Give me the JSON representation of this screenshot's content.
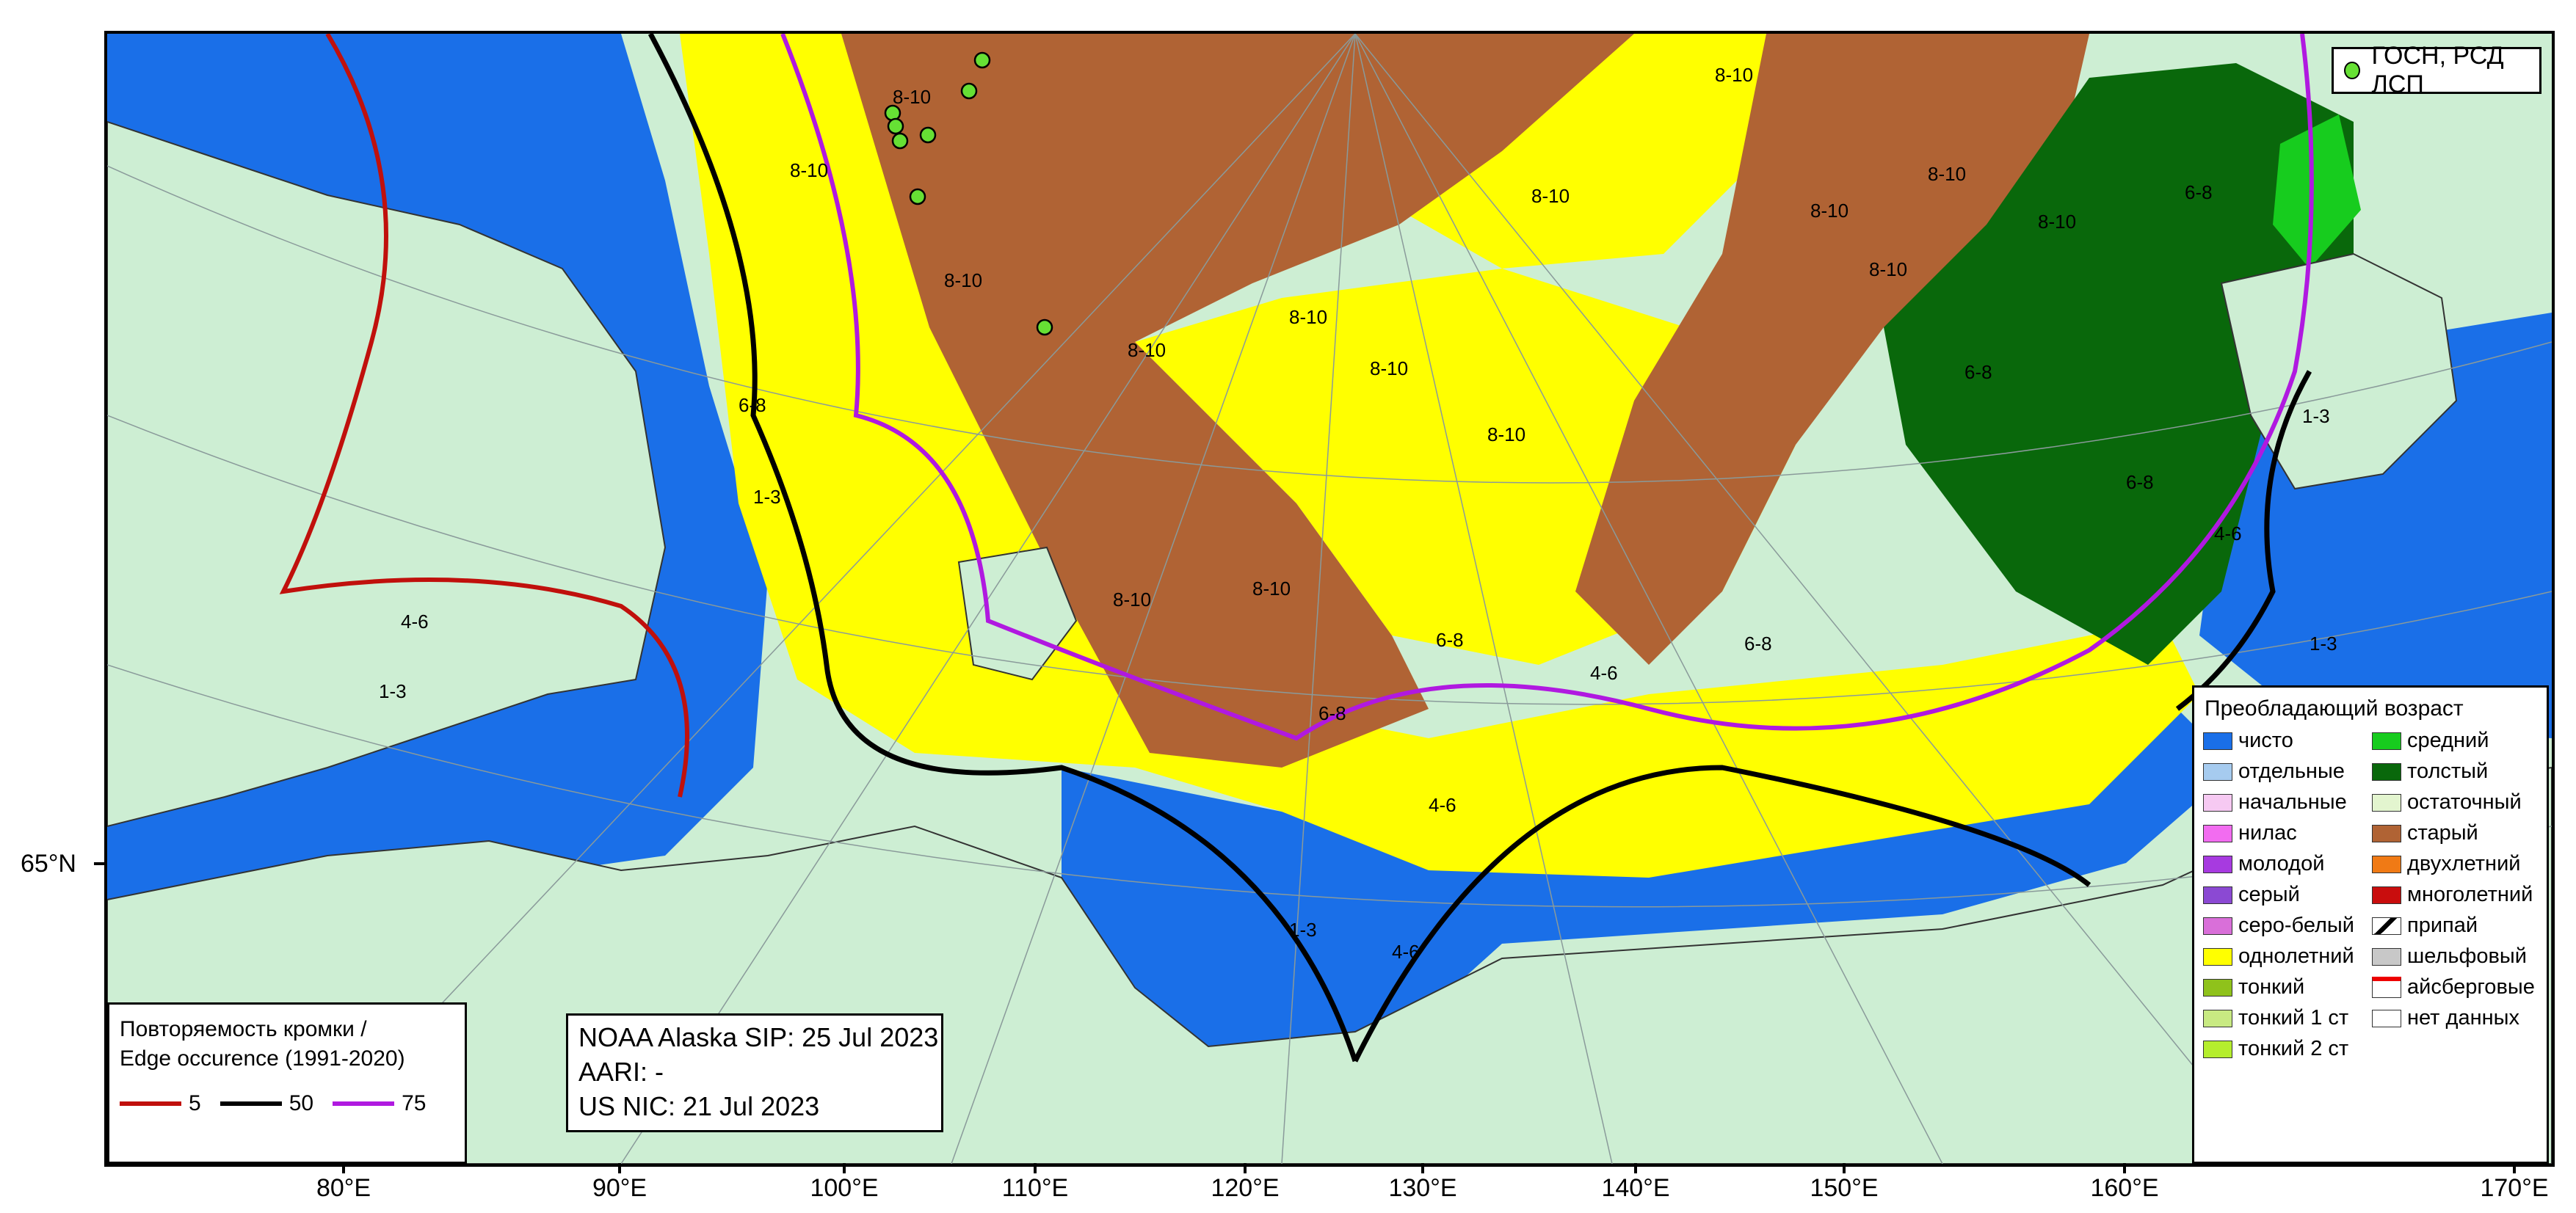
{
  "axes": {
    "x_ticks": [
      {
        "label": "80°E"
      },
      {
        "label": "90°E"
      },
      {
        "label": "100°E"
      },
      {
        "label": "110°E"
      },
      {
        "label": "120°E"
      },
      {
        "label": "130°E"
      },
      {
        "label": "140°E"
      },
      {
        "label": "150°E"
      },
      {
        "label": "160°E"
      },
      {
        "label": "170°E"
      }
    ],
    "y_tick": {
      "label": "65°N"
    }
  },
  "stations_legend": {
    "icon": "station-dot-icon",
    "label": "ГОСН, РСД ЛСП",
    "color": "#66e034"
  },
  "age_legend": {
    "title": "Преобладающий возраст",
    "items": [
      {
        "label": "чисто",
        "color": "#1a6fe8"
      },
      {
        "label": "средний",
        "color": "#17cc1e"
      },
      {
        "label": "отдельные",
        "color": "#a6cbef"
      },
      {
        "label": "толстый",
        "color": "#09680b"
      },
      {
        "label": "начальные",
        "color": "#f6c9f2"
      },
      {
        "label": "остаточный",
        "color": "#e3f5cf"
      },
      {
        "label": "нилас",
        "color": "#f26cf0"
      },
      {
        "label": "старый",
        "color": "#b06334"
      },
      {
        "label": "молодой",
        "color": "#a73ae0"
      },
      {
        "label": "двухлетний",
        "color": "#f07a15"
      },
      {
        "label": "серый",
        "color": "#8b49d3"
      },
      {
        "label": "многолетний",
        "color": "#c90d0d"
      },
      {
        "label": "серо-белый",
        "color": "#d96fd9"
      },
      {
        "label": "припай",
        "color": "#ffffff"
      },
      {
        "label": "однолетний",
        "color": "#ffff00"
      },
      {
        "label": "шельфовый",
        "color": "#c8c8c8"
      },
      {
        "label": "тонкий",
        "color": "#8fc21b"
      },
      {
        "label": "айсберговые",
        "color": "#ffffff"
      },
      {
        "label": "тонкий 1 ст",
        "color": "#c8ea82"
      },
      {
        "label": "нет данных",
        "color": "#ffffff"
      },
      {
        "label": "тонкий 2 ст",
        "color": "#b5ee2d"
      }
    ]
  },
  "edge_legend": {
    "title_line1": "Повторяемость кромки /",
    "title_line2": "Edge occurence (1991-2020)",
    "items": [
      {
        "label": "5",
        "color": "#c0100c"
      },
      {
        "label": "50",
        "color": "#000000"
      },
      {
        "label": "75",
        "color": "#b019e0"
      }
    ]
  },
  "sources": {
    "line1": "NOAA Alaska SIP: 25 Jul 2023",
    "line2": "AARI: -",
    "line3": "US NIC: 21 Jul 2023"
  },
  "concentration_labels": [
    {
      "text": "8-10"
    },
    {
      "text": "8-10"
    },
    {
      "text": "8-10"
    },
    {
      "text": "8-10"
    },
    {
      "text": "8-10"
    },
    {
      "text": "8-10"
    },
    {
      "text": "8-10"
    },
    {
      "text": "8-10"
    },
    {
      "text": "8-10"
    },
    {
      "text": "8-10"
    },
    {
      "text": "8-10"
    },
    {
      "text": "8-10"
    },
    {
      "text": "8-10"
    },
    {
      "text": "8-10"
    },
    {
      "text": "8-10"
    },
    {
      "text": "6-8"
    },
    {
      "text": "6-8"
    },
    {
      "text": "6-8"
    },
    {
      "text": "6-8"
    },
    {
      "text": "6-8"
    },
    {
      "text": "6-8"
    },
    {
      "text": "6-8"
    },
    {
      "text": "4-6"
    },
    {
      "text": "4-6"
    },
    {
      "text": "4-6"
    },
    {
      "text": "4-6"
    },
    {
      "text": "4-6"
    },
    {
      "text": "1-3"
    },
    {
      "text": "1-3"
    },
    {
      "text": "1-3"
    },
    {
      "text": "1-3"
    },
    {
      "text": "1-3"
    }
  ]
}
